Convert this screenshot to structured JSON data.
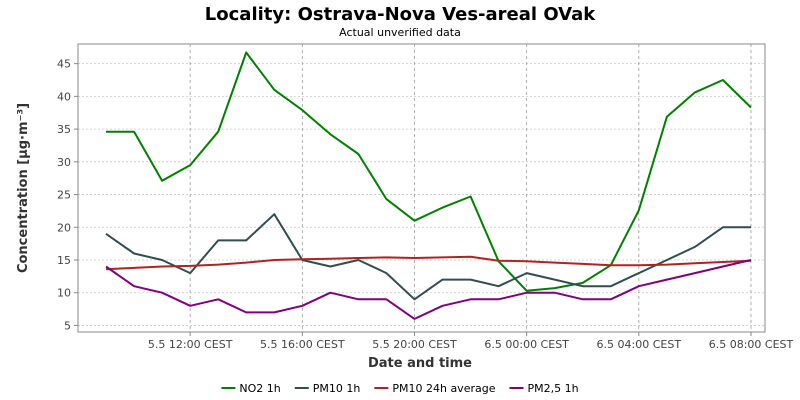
{
  "chart_data": {
    "type": "line",
    "title": "Locality: Ostrava-Nova Ves-areal OVak",
    "subtitle": "Actual unverified data",
    "xlabel": "Date and time",
    "ylabel": "Concentration [µg·m⁻³]",
    "ylim": [
      4,
      48
    ],
    "yticks": [
      5,
      10,
      15,
      20,
      25,
      30,
      35,
      40,
      45
    ],
    "x_hours": [
      9,
      10,
      11,
      12,
      13,
      14,
      15,
      16,
      17,
      18,
      19,
      20,
      21,
      22,
      23,
      24,
      25,
      26,
      27,
      28,
      29,
      30,
      31,
      32
    ],
    "xlim_hours": [
      8.0,
      32.5
    ],
    "xticks": [
      {
        "hour": 12,
        "label": "5.5 12:00 CEST"
      },
      {
        "hour": 16,
        "label": "5.5 16:00 CEST"
      },
      {
        "hour": 20,
        "label": "5.5 20:00 CEST"
      },
      {
        "hour": 24,
        "label": "6.5 00:00 CEST"
      },
      {
        "hour": 28,
        "label": "6.5 04:00 CEST"
      },
      {
        "hour": 32,
        "label": "6.5 08:00 CEST"
      }
    ],
    "grid": true,
    "legend_position": "bottom",
    "series": [
      {
        "name": "NO2 1h",
        "color": "#008000",
        "values": [
          34.6,
          34.6,
          27.1,
          29.5,
          34.6,
          46.7,
          41.0,
          37.9,
          34.2,
          31.2,
          24.3,
          21.0,
          23.0,
          24.7,
          14.8,
          10.3,
          10.7,
          11.5,
          14.2,
          22.6,
          36.9,
          40.6,
          42.5,
          38.3
        ]
      },
      {
        "name": "PM10 1h",
        "color": "#2f4f4f",
        "values": [
          19.0,
          16.0,
          15.0,
          13.0,
          18.0,
          18.0,
          22.0,
          15.0,
          14.0,
          15.0,
          13.0,
          9.0,
          12.0,
          12.0,
          11.0,
          13.0,
          12.0,
          11.0,
          11.0,
          13.0,
          15.0,
          17.0,
          20.0,
          20.0
        ]
      },
      {
        "name": "PM10 24h average",
        "color": "#b22222",
        "values": [
          13.6,
          13.8,
          14.0,
          14.1,
          14.3,
          14.6,
          15.0,
          15.1,
          15.2,
          15.3,
          15.4,
          15.3,
          15.4,
          15.5,
          14.9,
          14.8,
          14.6,
          14.4,
          14.2,
          14.2,
          14.3,
          14.5,
          14.7,
          14.9
        ]
      },
      {
        "name": "PM2,5 1h",
        "color": "#800080",
        "values": [
          14.0,
          11.0,
          10.0,
          8.0,
          9.0,
          7.0,
          7.0,
          8.0,
          10.0,
          9.0,
          9.0,
          6.0,
          8.0,
          9.0,
          9.0,
          10.0,
          10.0,
          9.0,
          9.0,
          11.0,
          12.0,
          13.0,
          14.0,
          15.0
        ]
      }
    ]
  }
}
